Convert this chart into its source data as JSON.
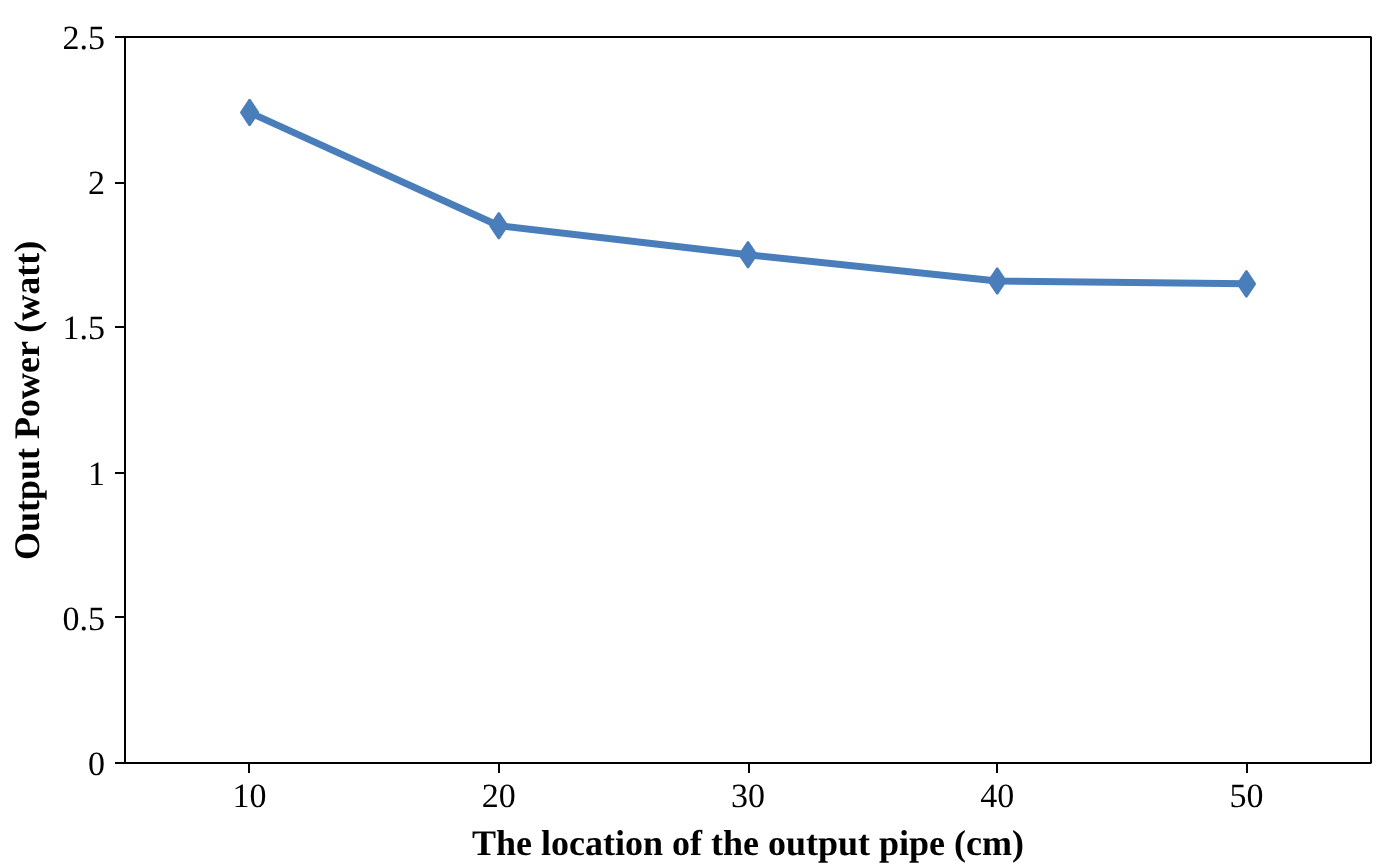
{
  "chart_data": {
    "type": "line",
    "xlabel": "The location of the output pipe (cm)",
    "ylabel": "Output Power (watt)",
    "categories": [
      "10",
      "20",
      "30",
      "40",
      "50"
    ],
    "series": [
      {
        "color": "#4a7ebb",
        "values": [
          2.24,
          1.85,
          1.75,
          1.66,
          1.65
        ]
      }
    ],
    "ylim": [
      0,
      2.5
    ],
    "yticks": [
      0,
      0.5,
      1,
      1.5,
      2,
      2.5
    ],
    "grid": false,
    "marker": "diamond",
    "line_style": "solid"
  }
}
